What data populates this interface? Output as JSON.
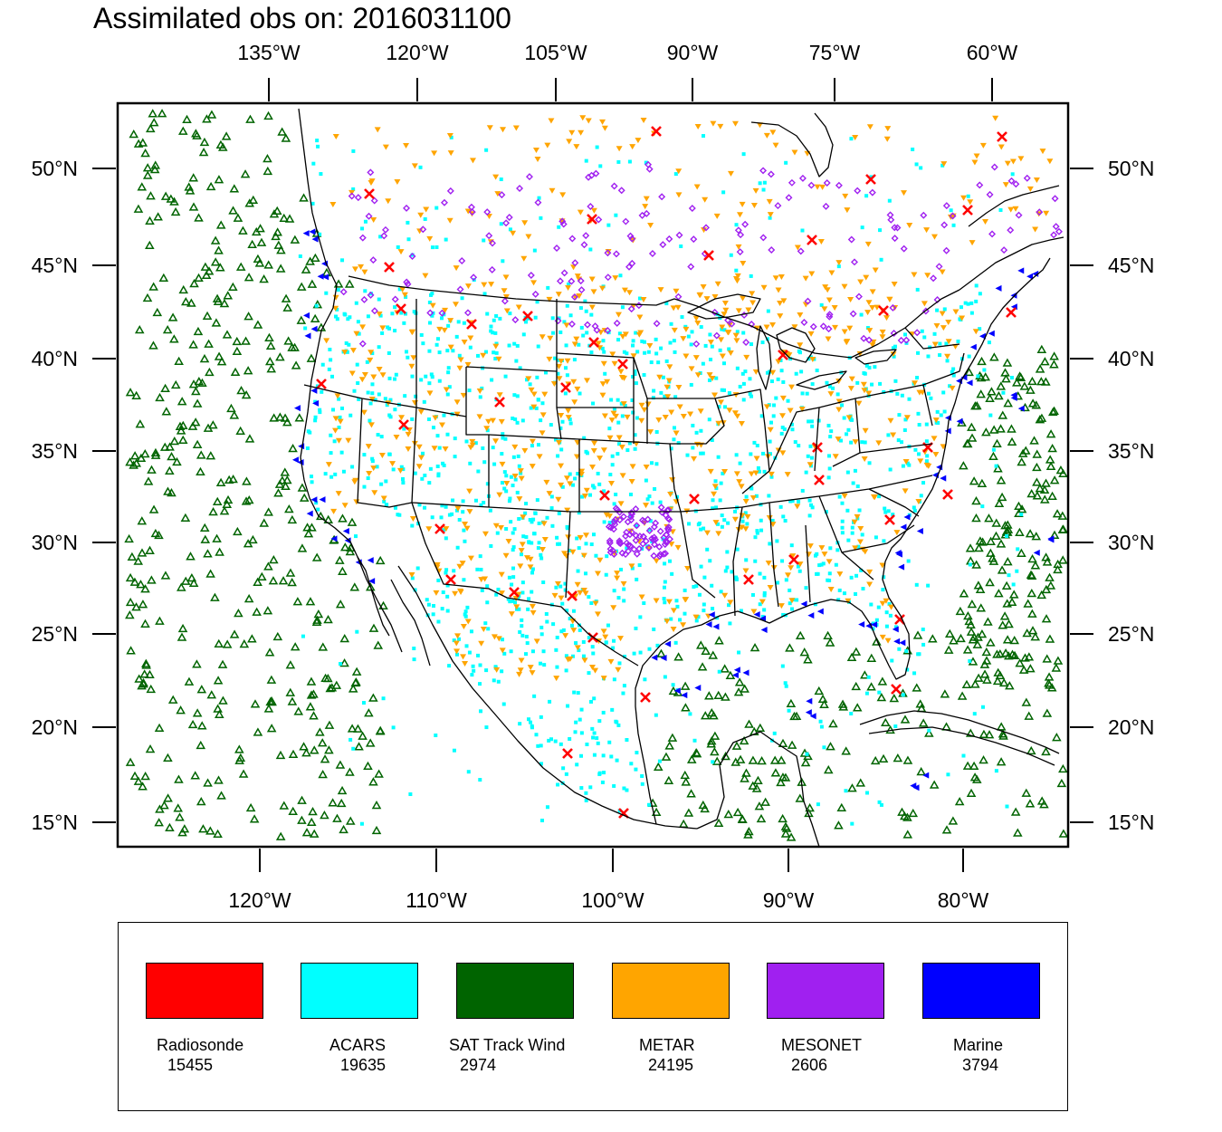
{
  "title": "Assimilated obs on: 2016031100",
  "map": {
    "top_lon_ticks": [
      "135°W",
      "120°W",
      "105°W",
      "90°W",
      "75°W",
      "60°W"
    ],
    "bottom_lon_ticks": [
      "120°W",
      "110°W",
      "100°W",
      "90°W",
      "80°W"
    ],
    "lat_ticks": [
      "50°N",
      "45°N",
      "40°N",
      "35°N",
      "30°N",
      "25°N",
      "20°N",
      "15°N"
    ],
    "extent": {
      "lon_min": -128,
      "lon_max": -74,
      "lat_min": 14,
      "lat_max": 52
    }
  },
  "legend": [
    {
      "label": "Radiosonde",
      "count": "15455",
      "color": "#ff0000",
      "marker": "x-cross"
    },
    {
      "label": "ACARS",
      "count": "19635",
      "color": "#00ffff",
      "marker": "square-dot"
    },
    {
      "label": "SAT Track Wind",
      "count": "2974",
      "color": "#006400",
      "marker": "hollow-triangle-up"
    },
    {
      "label": "METAR",
      "count": "24195",
      "color": "#ffa500",
      "marker": "triangle-down"
    },
    {
      "label": "MESONET",
      "count": "2606",
      "color": "#a020f0",
      "marker": "diamond"
    },
    {
      "label": "Marine",
      "count": "3794",
      "color": "#0000ff",
      "marker": "triangle-left"
    }
  ]
}
